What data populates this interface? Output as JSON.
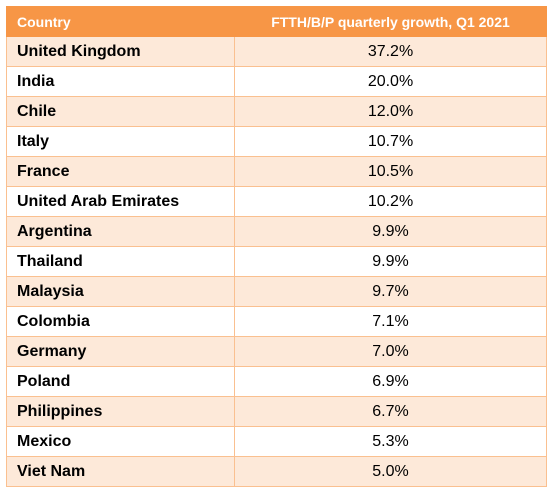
{
  "chart_data": {
    "type": "table",
    "columns": [
      "Country",
      "FTTH/B/P quarterly growth, Q1 2021"
    ],
    "rows": [
      {
        "country": "United Kingdom",
        "value": "37.2%"
      },
      {
        "country": "India",
        "value": "20.0%"
      },
      {
        "country": "Chile",
        "value": "12.0%"
      },
      {
        "country": "Italy",
        "value": "10.7%"
      },
      {
        "country": "France",
        "value": "10.5%"
      },
      {
        "country": "United Arab Emirates",
        "value": "10.2%"
      },
      {
        "country": "Argentina",
        "value": "9.9%"
      },
      {
        "country": "Thailand",
        "value": "9.9%"
      },
      {
        "country": "Malaysia",
        "value": "9.7%"
      },
      {
        "country": "Colombia",
        "value": "7.1%"
      },
      {
        "country": "Germany",
        "value": "7.0%"
      },
      {
        "country": "Poland",
        "value": "6.9%"
      },
      {
        "country": "Philippines",
        "value": "6.7%"
      },
      {
        "country": "Mexico",
        "value": "5.3%"
      },
      {
        "country": "Viet Nam",
        "value": "5.0%"
      }
    ],
    "colors": {
      "header": "#f79646",
      "band": "#fde9d9",
      "border": "#fac090"
    }
  }
}
